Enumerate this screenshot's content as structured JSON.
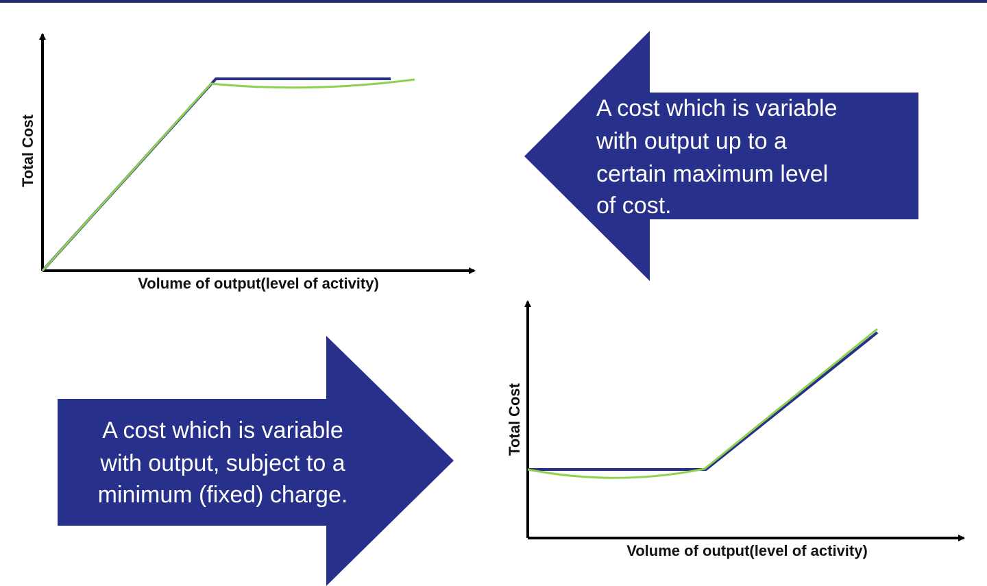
{
  "graphs": [
    {
      "y_label": "Total Cost",
      "x_label": "Volume of output(level of activity)"
    },
    {
      "y_label": "Total Cost",
      "x_label": "Volume of output(level of activity)"
    }
  ],
  "callouts": [
    {
      "lines": [
        "A cost which is variable",
        "with output up to a",
        "certain maximum level",
        "of cost."
      ]
    },
    {
      "lines": [
        "A cost which is variable",
        "with output, subject to a",
        "minimum (fixed) charge."
      ]
    }
  ]
}
